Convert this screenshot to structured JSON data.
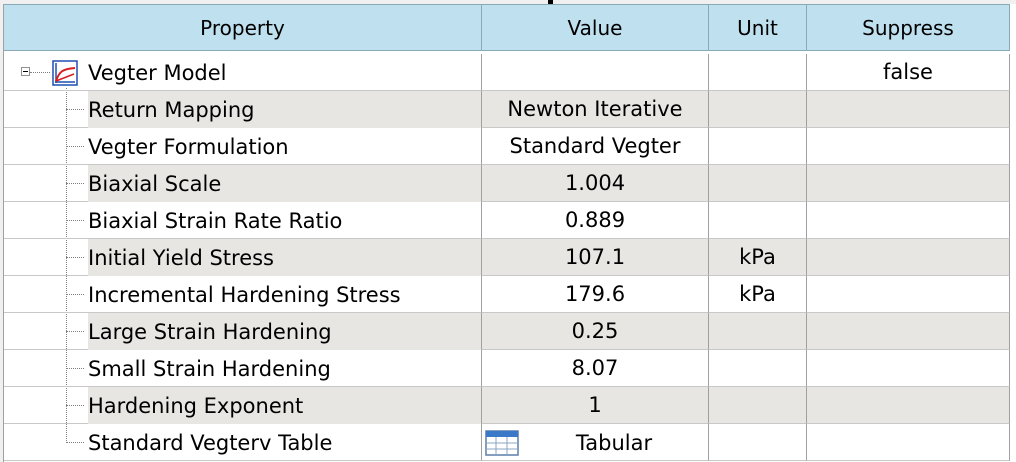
{
  "headers": {
    "property": "Property",
    "value": "Value",
    "unit": "Unit",
    "suppress": "Suppress"
  },
  "model": {
    "name": "Vegter Model",
    "suppress": "false",
    "icon": "material-model-icon",
    "expanded": true
  },
  "rows": [
    {
      "property": "Return Mapping",
      "value": "Newton Iterative",
      "unit": ""
    },
    {
      "property": "Vegter Formulation",
      "value": "Standard Vegter",
      "unit": ""
    },
    {
      "property": "Biaxial Scale",
      "value": "1.004",
      "unit": ""
    },
    {
      "property": "Biaxial Strain Rate Ratio",
      "value": "0.889",
      "unit": ""
    },
    {
      "property": "Initial Yield Stress",
      "value": "107.1",
      "unit": "kPa"
    },
    {
      "property": "Incremental Hardening Stress",
      "value": "179.6",
      "unit": "kPa"
    },
    {
      "property": "Large Strain Hardening",
      "value": "0.25",
      "unit": ""
    },
    {
      "property": "Small Strain Hardening",
      "value": "8.07",
      "unit": ""
    },
    {
      "property": "Hardening Exponent",
      "value": "1",
      "unit": ""
    },
    {
      "property": "Standard Vegterv Table",
      "value": "Tabular",
      "unit": "",
      "icon": "table-icon"
    }
  ],
  "colors": {
    "header_bg": "#bfe0ee",
    "shaded_row": "#e8e6e3",
    "icon_red": "#d62020",
    "icon_blue": "#1f4fb0"
  }
}
